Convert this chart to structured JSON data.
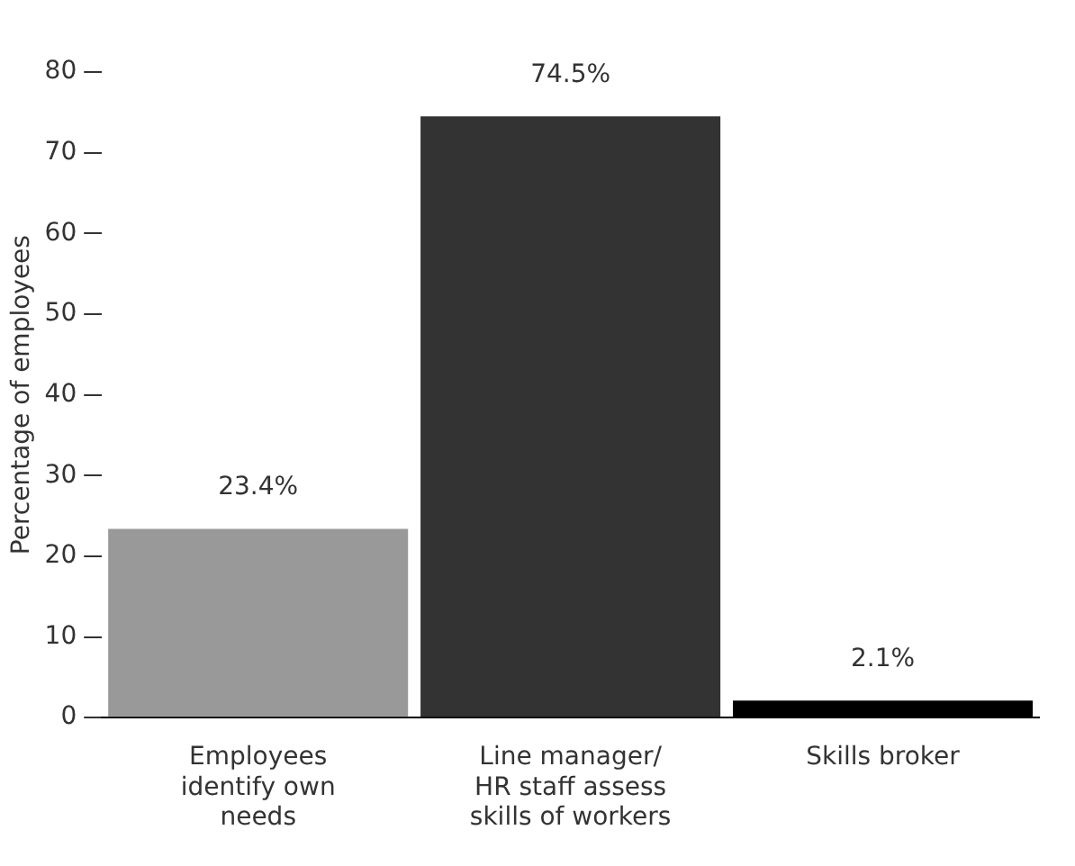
{
  "chart_data": {
    "type": "bar",
    "ylabel": "Percentage of employees",
    "categories": [
      "Employees identify own needs",
      "Line manager/ HR staff assess skills of workers",
      "Skills broker"
    ],
    "values": [
      23.4,
      74.5,
      2.1
    ],
    "colors": [
      "#999999",
      "#333333",
      "#000000"
    ],
    "value_labels": [
      "23.4%",
      "74.5%",
      "2.1%"
    ],
    "ylim": [
      0,
      80
    ],
    "yticks": [
      0,
      10,
      20,
      30,
      40,
      50,
      60,
      70,
      80
    ],
    "grid": false,
    "legend": false
  }
}
